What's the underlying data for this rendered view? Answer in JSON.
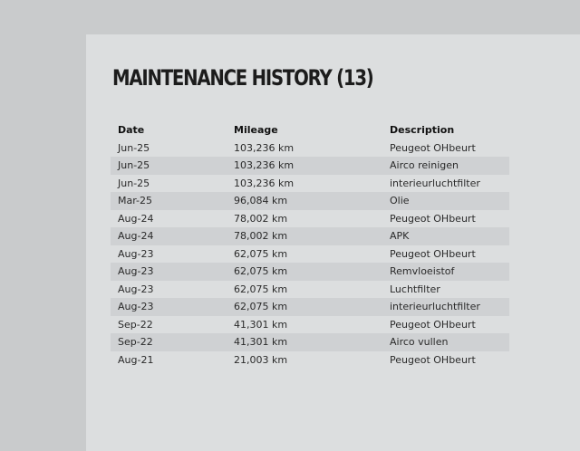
{
  "title": "MAINTENANCE HISTORY (13)",
  "columns": {
    "date": "Date",
    "mileage": "Mileage",
    "description": "Description"
  },
  "rows": [
    {
      "date": "Jun-25",
      "mileage": "103,236 km",
      "description": "Peugeot OHbeurt"
    },
    {
      "date": "Jun-25",
      "mileage": "103,236 km",
      "description": "Airco reinigen"
    },
    {
      "date": "Jun-25",
      "mileage": "103,236 km",
      "description": "interieurluchtfilter"
    },
    {
      "date": "Mar-25",
      "mileage": "96,084 km",
      "description": "Olie"
    },
    {
      "date": "Aug-24",
      "mileage": "78,002 km",
      "description": "Peugeot OHbeurt"
    },
    {
      "date": "Aug-24",
      "mileage": "78,002 km",
      "description": "APK"
    },
    {
      "date": "Aug-23",
      "mileage": "62,075 km",
      "description": "Peugeot OHbeurt"
    },
    {
      "date": "Aug-23",
      "mileage": "62,075 km",
      "description": "Remvloeistof"
    },
    {
      "date": "Aug-23",
      "mileage": "62,075 km",
      "description": "Luchtfilter"
    },
    {
      "date": "Aug-23",
      "mileage": "62,075 km",
      "description": "interieurluchtfilter"
    },
    {
      "date": "Sep-22",
      "mileage": "41,301 km",
      "description": "Peugeot OHbeurt"
    },
    {
      "date": "Sep-22",
      "mileage": "41,301 km",
      "description": "Airco vullen"
    },
    {
      "date": "Aug-21",
      "mileage": "21,003 km",
      "description": "Peugeot OHbeurt"
    }
  ]
}
